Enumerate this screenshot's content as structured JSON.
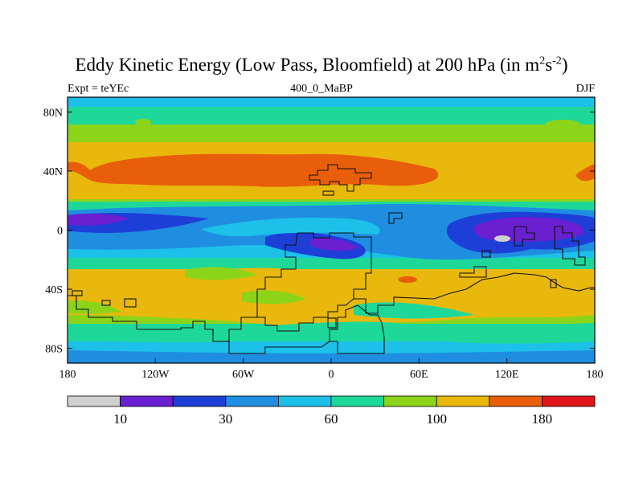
{
  "title": {
    "main": "Eddy Kinetic Energy (Low Pass, Bloomfield) at 200 hPa (in m",
    "sup1": "2",
    "mid": "s",
    "sup2": "-2",
    "end": ")"
  },
  "subtitle": "400_0_MaBP",
  "left_label": "Expt = teYEc",
  "right_label": "DJF",
  "axes": {
    "lon_ticks": [
      {
        "lon": -180,
        "label": "180"
      },
      {
        "lon": -120,
        "label": "120W"
      },
      {
        "lon": -60,
        "label": "60W"
      },
      {
        "lon": 0,
        "label": "0"
      },
      {
        "lon": 60,
        "label": "60E"
      },
      {
        "lon": 120,
        "label": "120E"
      },
      {
        "lon": 180,
        "label": "180"
      }
    ],
    "lat_ticks": [
      {
        "lat": 80,
        "label": "80N"
      },
      {
        "lat": 40,
        "label": "40N"
      },
      {
        "lat": 0,
        "label": "0"
      },
      {
        "lat": -40,
        "label": "40S"
      },
      {
        "lat": -80,
        "label": "80S"
      }
    ]
  },
  "colorbar": {
    "colors": [
      "#d0d0d0",
      "#6a1fd0",
      "#1d3fd8",
      "#1f8ee0",
      "#1cc0e8",
      "#1ed89a",
      "#8cd41a",
      "#e8b80c",
      "#e85e0a",
      "#e0151b"
    ],
    "labels": [
      {
        "after_box": 1,
        "text": "10"
      },
      {
        "after_box": 3,
        "text": "30"
      },
      {
        "after_box": 5,
        "text": "60"
      },
      {
        "after_box": 7,
        "text": "100"
      },
      {
        "after_box": 9,
        "text": "180"
      }
    ]
  }
}
